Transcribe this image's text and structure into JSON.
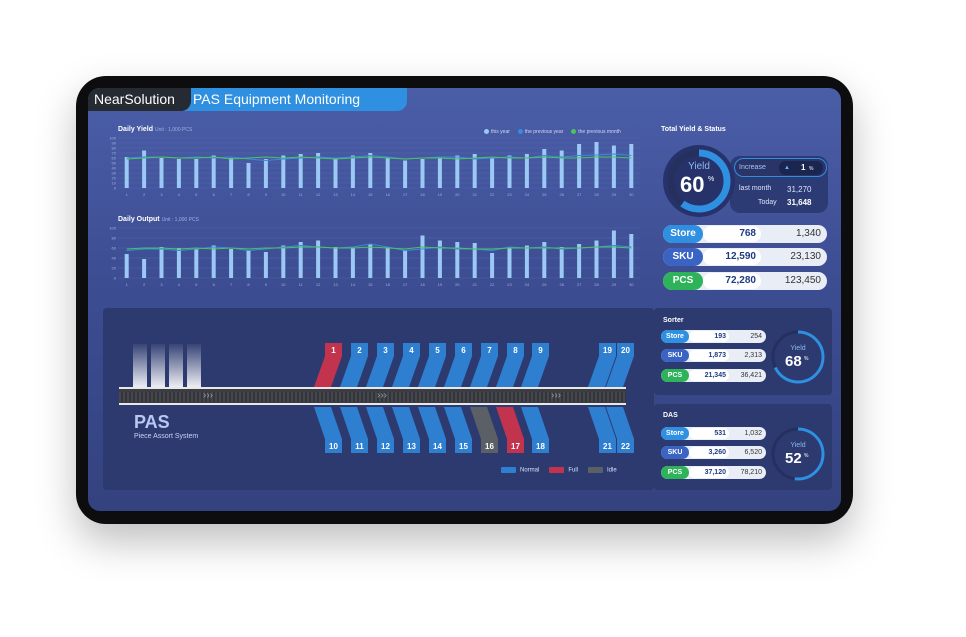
{
  "header": {
    "brand": "NearSolution",
    "title": "PAS Equipment Monitoring"
  },
  "daily_yield": {
    "title": "Daily Yield",
    "unit": "Unit : 1,000 PCS",
    "legend": [
      "this year",
      "the previous year",
      "the previous month"
    ]
  },
  "daily_output": {
    "title": "Daily Output",
    "unit": "Unit : 1,000 PCS"
  },
  "colors": {
    "this_year": "#9cc8f5",
    "prev_year": "#3a8be0",
    "prev_month": "#4ec25c",
    "normal": "#2f7fd0",
    "full": "#c2334d",
    "idle": "#5b5f66"
  },
  "chart_data": [
    {
      "type": "bar",
      "title": "Daily Yield",
      "ylim": [
        0,
        100
      ],
      "yticks": [
        0,
        10,
        20,
        30,
        40,
        50,
        60,
        70,
        80,
        90,
        100
      ],
      "categories": [
        "1",
        "2",
        "3",
        "4",
        "5",
        "6",
        "7",
        "8",
        "9",
        "10",
        "11",
        "12",
        "13",
        "14",
        "15",
        "16",
        "17",
        "18",
        "19",
        "20",
        "21",
        "22",
        "23",
        "24",
        "25",
        "26",
        "27",
        "28",
        "29",
        "30"
      ],
      "series": [
        {
          "name": "this year",
          "type": "bar",
          "values": [
            62,
            75,
            60,
            58,
            58,
            65,
            60,
            50,
            58,
            65,
            68,
            70,
            60,
            65,
            70,
            62,
            55,
            58,
            62,
            65,
            68,
            60,
            65,
            68,
            78,
            75,
            88,
            92,
            85,
            88
          ]
        },
        {
          "name": "the previous year",
          "type": "line",
          "values": [
            60,
            62,
            62,
            60,
            62,
            60,
            62,
            58,
            55,
            58,
            60,
            62,
            60,
            62,
            65,
            62,
            58,
            60,
            62,
            62,
            58,
            60,
            62,
            60,
            65,
            62,
            65,
            66,
            68,
            65
          ]
        },
        {
          "name": "the previous month",
          "type": "line",
          "values": [
            58,
            60,
            62,
            60,
            60,
            62,
            58,
            60,
            62,
            60,
            62,
            60,
            58,
            60,
            62,
            60,
            58,
            60,
            60,
            58,
            60,
            62,
            60,
            60,
            62,
            60,
            60,
            62,
            62,
            60
          ]
        }
      ]
    },
    {
      "type": "bar",
      "title": "Daily Output",
      "ylim": [
        0,
        100
      ],
      "yticks": [
        0,
        20,
        40,
        60,
        80,
        100
      ],
      "categories": [
        "1",
        "2",
        "3",
        "4",
        "5",
        "6",
        "7",
        "8",
        "9",
        "10",
        "11",
        "12",
        "13",
        "14",
        "15",
        "16",
        "17",
        "18",
        "19",
        "20",
        "21",
        "22",
        "23",
        "24",
        "25",
        "26",
        "27",
        "28",
        "29",
        "30"
      ],
      "series": [
        {
          "name": "this year",
          "type": "bar",
          "values": [
            48,
            38,
            62,
            60,
            58,
            65,
            58,
            55,
            52,
            65,
            72,
            75,
            62,
            60,
            68,
            62,
            55,
            85,
            75,
            72,
            70,
            50,
            62,
            65,
            72,
            62,
            68,
            75,
            95,
            88
          ]
        },
        {
          "name": "the previous year",
          "type": "line",
          "values": [
            55,
            58,
            58,
            55,
            58,
            62,
            60,
            55,
            58,
            62,
            65,
            62,
            60,
            62,
            68,
            62,
            55,
            58,
            62,
            58,
            58,
            55,
            62,
            60,
            62,
            58,
            60,
            62,
            65,
            62
          ]
        },
        {
          "name": "the previous month",
          "type": "line",
          "values": [
            58,
            60,
            60,
            58,
            60,
            58,
            60,
            58,
            60,
            60,
            62,
            62,
            60,
            60,
            62,
            60,
            58,
            62,
            60,
            60,
            58,
            58,
            60,
            60,
            60,
            60,
            60,
            62,
            62,
            60
          ]
        }
      ]
    }
  ],
  "total": {
    "title": "Total Yield & Status",
    "yield_label": "Yield",
    "yield_value": "60",
    "yield_unit": "%",
    "yield_fraction": 0.6,
    "increase_label": "Increase",
    "increase_arrow": "▲",
    "increase_value": "1",
    "increase_unit": "%",
    "last_month_label": "last month",
    "last_month_value": "31,270",
    "today_label": "Today",
    "today_value": "31,648",
    "rows": [
      {
        "label": "Store",
        "value": "768",
        "total": "1,340",
        "color": "store"
      },
      {
        "label": "SKU",
        "value": "12,590",
        "total": "23,130",
        "color": "sku"
      },
      {
        "label": "PCS",
        "value": "72,280",
        "total": "123,450",
        "color": "pcs"
      }
    ]
  },
  "sorter": {
    "title": "Sorter",
    "yield_label": "Yield",
    "yield_value": "68",
    "yield_unit": "%",
    "yield_fraction": 0.68,
    "rows": [
      {
        "label": "Store",
        "value": "193",
        "total": "254"
      },
      {
        "label": "SKU",
        "value": "1,873",
        "total": "2,313"
      },
      {
        "label": "PCS",
        "value": "21,345",
        "total": "36,421"
      }
    ]
  },
  "das": {
    "title": "DAS",
    "yield_label": "Yield",
    "yield_value": "52",
    "yield_unit": "%",
    "yield_fraction": 0.52,
    "rows": [
      {
        "label": "Store",
        "value": "531",
        "total": "1,032"
      },
      {
        "label": "SKU",
        "value": "3,260",
        "total": "6,520"
      },
      {
        "label": "PCS",
        "value": "37,120",
        "total": "78,210"
      }
    ]
  },
  "pas": {
    "title": "PAS",
    "subtitle": "Piece Assort System",
    "conveyor_arrows": "›››",
    "top_lanes": [
      {
        "n": "1",
        "state": "full"
      },
      {
        "n": "2",
        "state": "normal"
      },
      {
        "n": "3",
        "state": "normal"
      },
      {
        "n": "4",
        "state": "normal"
      },
      {
        "n": "5",
        "state": "normal"
      },
      {
        "n": "6",
        "state": "normal"
      },
      {
        "n": "7",
        "state": "normal"
      },
      {
        "n": "8",
        "state": "normal"
      },
      {
        "n": "9",
        "state": "normal"
      },
      {
        "n": "19",
        "state": "normal"
      },
      {
        "n": "20",
        "state": "normal"
      }
    ],
    "bottom_lanes": [
      {
        "n": "10",
        "state": "normal"
      },
      {
        "n": "11",
        "state": "normal"
      },
      {
        "n": "12",
        "state": "normal"
      },
      {
        "n": "13",
        "state": "normal"
      },
      {
        "n": "14",
        "state": "normal"
      },
      {
        "n": "15",
        "state": "normal"
      },
      {
        "n": "16",
        "state": "idle"
      },
      {
        "n": "17",
        "state": "full"
      },
      {
        "n": "18",
        "state": "normal"
      },
      {
        "n": "21",
        "state": "normal"
      },
      {
        "n": "22",
        "state": "normal"
      }
    ],
    "legend": {
      "normal": "Normal",
      "full": "Full",
      "idle": "Idle"
    }
  }
}
